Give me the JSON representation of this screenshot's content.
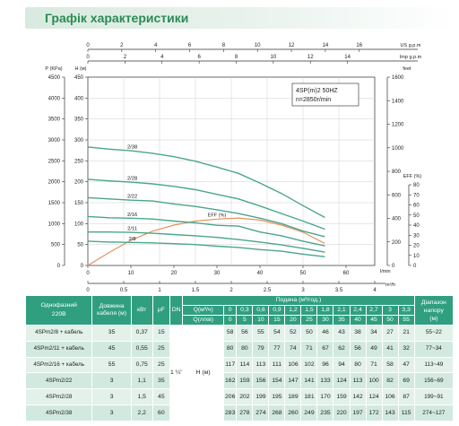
{
  "header": {
    "title": "Графік характеристики"
  },
  "chart_data": {
    "type": "line",
    "info_box": [
      "4SP(m)2  50HZ",
      "n=2850r/min"
    ],
    "axes": {
      "us_gpm": {
        "label": "US g.p.m",
        "ticks": [
          "0",
          "2",
          "4",
          "6",
          "8",
          "10",
          "12",
          "14",
          "16"
        ]
      },
      "imp_gpm": {
        "label": "Imp g.p.m",
        "ticks": [
          "0",
          "2",
          "4",
          "6",
          "8",
          "10",
          "12",
          "14"
        ]
      },
      "pressure": {
        "label": "P (KPa)",
        "ticks": [
          "4500",
          "4000",
          "3500",
          "3000",
          "2500",
          "2000",
          "1500",
          "1000",
          "500",
          "0"
        ]
      },
      "head_m": {
        "label": "H (м)",
        "ticks": [
          "450",
          "400",
          "350",
          "300",
          "250",
          "200",
          "150",
          "100",
          "50",
          "0"
        ]
      },
      "head_ft": {
        "label": "feet",
        "ticks": [
          "1600",
          "1400",
          "1200",
          "1000",
          "800",
          "600",
          "400",
          "200",
          "0"
        ]
      },
      "eff": {
        "label": "EFF (%)",
        "ticks": [
          "80",
          "70",
          "60",
          "50",
          "40",
          "30",
          "20",
          "10",
          "0"
        ]
      },
      "flow_lmin": {
        "label": "l/min",
        "ticks": [
          "0",
          "10",
          "20",
          "30",
          "40",
          "50",
          "60"
        ]
      },
      "flow_m3h": {
        "label": "m³/h",
        "ticks": [
          "0",
          "0.5",
          "1",
          "1.5",
          "2",
          "2.5",
          "3",
          "3.5",
          "4"
        ]
      }
    },
    "x": [
      0,
      0.3,
      0.6,
      0.9,
      1.2,
      1.5,
      1.8,
      2.1,
      2.4,
      2.7,
      3,
      3.3
    ],
    "series": [
      {
        "name": "2/38",
        "values": [
          283,
          278,
          274,
          268,
          260,
          249,
          235,
          220,
          197,
          172,
          143,
          115
        ]
      },
      {
        "name": "2/28",
        "values": [
          206,
          202,
          199,
          195,
          189,
          181,
          170,
          159,
          142,
          124,
          106,
          87
        ]
      },
      {
        "name": "2/22",
        "values": [
          162,
          159,
          156,
          154,
          147,
          141,
          133,
          124,
          113,
          100,
          82,
          69
        ]
      },
      {
        "name": "2/16",
        "values": [
          117,
          114,
          113,
          111,
          106,
          102,
          96,
          94,
          80,
          71,
          58,
          47
        ]
      },
      {
        "name": "2/11",
        "values": [
          80,
          80,
          79,
          77,
          74,
          71,
          67,
          62,
          56,
          49,
          41,
          32
        ]
      },
      {
        "name": "2/8",
        "values": [
          58,
          56,
          55,
          54,
          52,
          50,
          46,
          43,
          38,
          34,
          27,
          21
        ]
      }
    ],
    "efficiency": {
      "label": "EFF (%)",
      "x": [
        0,
        0.3,
        0.6,
        0.9,
        1.2,
        1.5,
        1.8,
        2.1,
        2.4,
        2.7,
        3,
        3.3
      ],
      "values": [
        0,
        13,
        25,
        34,
        40,
        44,
        46,
        47,
        45,
        40,
        33,
        22
      ]
    },
    "ylim": [
      0,
      450
    ],
    "xlim": [
      0,
      4
    ],
    "grid": true
  },
  "table": {
    "head": {
      "model": "Однофазний",
      "voltage": "220В",
      "cable": "Довжина кабеля (м)",
      "kw": "кВт",
      "uf": "μF",
      "dn": "DN",
      "supply": "Подача (м³/год.)",
      "q_m3h": "Q(м³/ч)",
      "q_lmin": "Q(л/хв)",
      "range": "Діапазон напору",
      "range_unit": "(м)",
      "q_m3h_values": [
        "0",
        "0,3",
        "0,6",
        "0,9",
        "1,2",
        "1,5",
        "1,8",
        "2,1",
        "2,4",
        "2,7",
        "3",
        "3,3"
      ],
      "q_lmin_values": [
        "0",
        "5",
        "10",
        "15",
        "20",
        "25",
        "30",
        "35",
        "40",
        "45",
        "50",
        "55"
      ]
    },
    "dn_value": "1 ¼\"",
    "h_label": "H (м)",
    "rows": [
      {
        "model": "4SPm2/8 + кабель",
        "cable": "35",
        "kw": "0,37",
        "uf": "15",
        "vals": [
          "58",
          "56",
          "55",
          "54",
          "52",
          "50",
          "46",
          "43",
          "38",
          "34",
          "27",
          "21"
        ],
        "range": "55~22"
      },
      {
        "model": "4SPm2/11 + кабель",
        "cable": "45",
        "kw": "0,55",
        "uf": "25",
        "vals": [
          "80",
          "80",
          "79",
          "77",
          "74",
          "71",
          "67",
          "62",
          "56",
          "49",
          "41",
          "32"
        ],
        "range": "77~34"
      },
      {
        "model": "4SPm2/16 + кабель",
        "cable": "55",
        "kw": "0,75",
        "uf": "25",
        "vals": [
          "117",
          "114",
          "113",
          "111",
          "106",
          "102",
          "96",
          "94",
          "80",
          "71",
          "58",
          "47"
        ],
        "range": "113~49"
      },
      {
        "model": "4SPm2/22",
        "cable": "3",
        "kw": "1,1",
        "uf": "35",
        "vals": [
          "162",
          "159",
          "156",
          "154",
          "147",
          "141",
          "133",
          "124",
          "113",
          "100",
          "82",
          "69"
        ],
        "range": "156~69"
      },
      {
        "model": "4SPm2/28",
        "cable": "3",
        "kw": "1,5",
        "uf": "45",
        "vals": [
          "206",
          "202",
          "199",
          "195",
          "189",
          "181",
          "170",
          "159",
          "142",
          "124",
          "106",
          "87"
        ],
        "range": "199~91"
      },
      {
        "model": "4SPm2/38",
        "cable": "3",
        "kw": "2,2",
        "uf": "60",
        "vals": [
          "283",
          "278",
          "274",
          "268",
          "260",
          "249",
          "235",
          "220",
          "197",
          "172",
          "143",
          "115"
        ],
        "range": "274~127"
      }
    ]
  },
  "colors": {
    "accent": "#2b8a55",
    "curve": "#4aa58f",
    "efficiency": "#e8915a",
    "table_head": "#2f9f80"
  }
}
